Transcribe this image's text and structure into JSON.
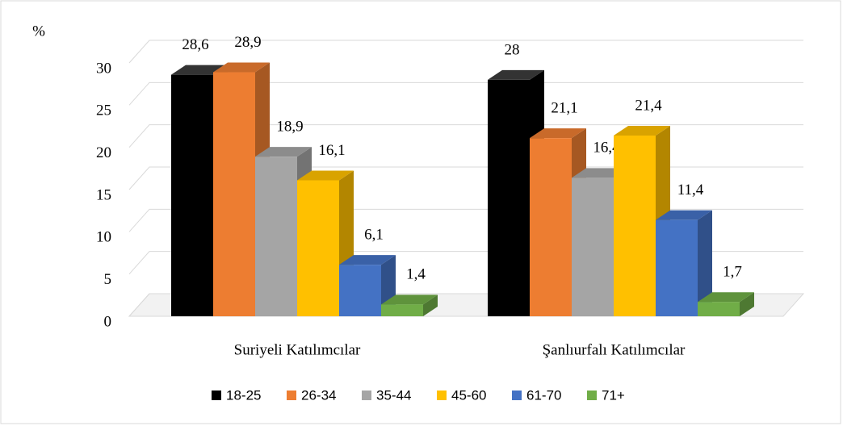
{
  "chart_data": {
    "type": "bar3d",
    "y_axis_label": "%",
    "categories": [
      "Suriyeli Katılımcılar",
      "Şanlıurfalı Katılımcılar"
    ],
    "series": [
      {
        "name": "18-25",
        "color": "#000000",
        "values": [
          28.6,
          28
        ],
        "value_labels": [
          "28,6",
          "28"
        ]
      },
      {
        "name": "26-34",
        "color": "#ed7d31",
        "values": [
          28.9,
          21.1
        ],
        "value_labels": [
          "28,9",
          "21,1"
        ]
      },
      {
        "name": "35-44",
        "color": "#a5a5a5",
        "values": [
          18.9,
          16.4
        ],
        "value_labels": [
          "18,9",
          "16,4"
        ]
      },
      {
        "name": "45-60",
        "color": "#ffc000",
        "values": [
          16.1,
          21.4
        ],
        "value_labels": [
          "16,1",
          "21,4"
        ]
      },
      {
        "name": "61-70",
        "color": "#4472c4",
        "values": [
          6.1,
          11.4
        ],
        "value_labels": [
          "6,1",
          "11,4"
        ]
      },
      {
        "name": "71+",
        "color": "#70ad47",
        "values": [
          1.4,
          1.7
        ],
        "value_labels": [
          "1,4",
          "1,7"
        ]
      }
    ],
    "ylim": [
      0,
      30
    ],
    "yticks": [
      0,
      5,
      10,
      15,
      20,
      25,
      30
    ],
    "grid": true,
    "legend": "bottom"
  }
}
